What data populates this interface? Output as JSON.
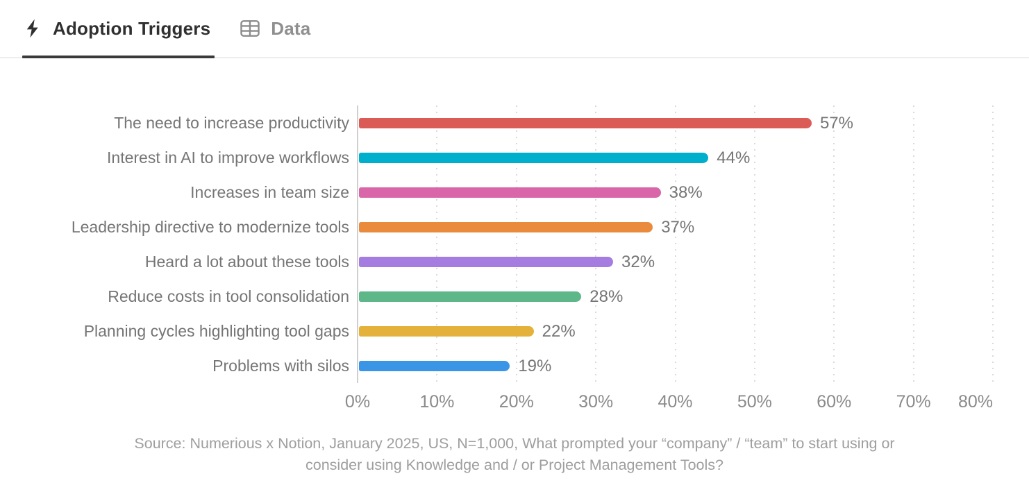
{
  "tabs": [
    {
      "label": "Adoption Triggers",
      "icon": "lightning-icon",
      "active": true
    },
    {
      "label": "Data",
      "icon": "table-icon",
      "active": false
    }
  ],
  "chart_data": {
    "type": "bar",
    "orientation": "horizontal",
    "categories": [
      "The need to increase productivity",
      "Interest in AI to improve workflows",
      "Increases in team size",
      "Leadership directive to modernize tools",
      "Heard a lot about these tools",
      "Reduce costs in tool consolidation",
      "Planning cycles highlighting tool gaps",
      "Problems with silos"
    ],
    "values": [
      57,
      44,
      38,
      37,
      32,
      28,
      22,
      19
    ],
    "value_labels": [
      "57%",
      "44%",
      "38%",
      "37%",
      "32%",
      "28%",
      "22%",
      "19%"
    ],
    "bar_colors": [
      "#DB5B56",
      "#00AFCB",
      "#D866A9",
      "#E98A3D",
      "#A57CE0",
      "#5EB788",
      "#E4B23A",
      "#3A95E7"
    ],
    "xlabel": "",
    "ylabel": "",
    "xlim": [
      0,
      80
    ],
    "x_ticks": [
      "0%",
      "10%",
      "20%",
      "30%",
      "40%",
      "50%",
      "60%",
      "70%",
      "80%"
    ],
    "grid": "vertical-dotted",
    "legend": "none",
    "source_lines": [
      "Source: Numerious x Notion, January 2025, US, N=1,000, What prompted your “company” / “team” to start using or",
      "consider using Knowledge and / or Project Management Tools?"
    ]
  },
  "colors": {
    "active_tab_text": "#303030",
    "inactive_tab_text": "#8f8f8f",
    "active_underline": "#3a3a3a",
    "tabbar_divider": "#ededed",
    "category_text": "#757575",
    "value_text": "#757575",
    "tick_text": "#8a8a8a",
    "source_text": "#9e9e9e",
    "gridline": "#dadada",
    "axis_line": "#cfcfcf"
  }
}
